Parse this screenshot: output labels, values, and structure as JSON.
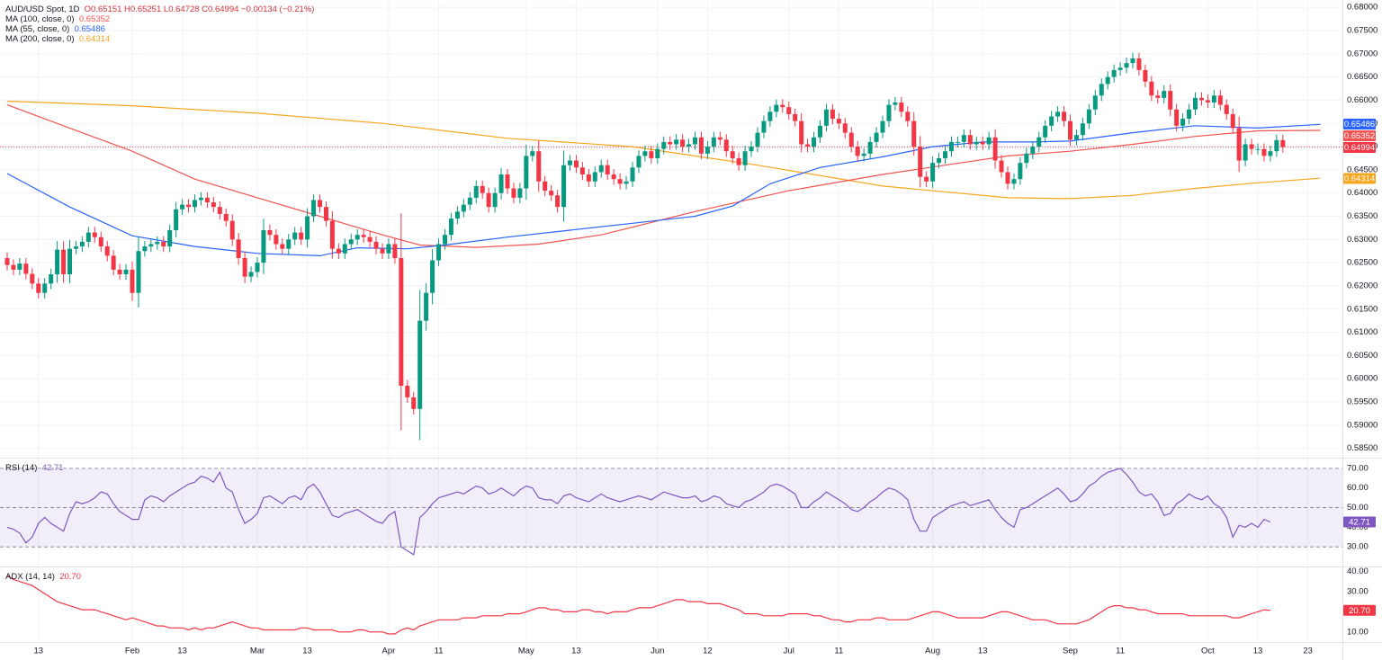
{
  "header": {
    "symbol": "AUD/USD Spot, 1D",
    "o_label": "O",
    "open": "0.65151",
    "h_label": "H",
    "high": "0.65251",
    "l_label": "L",
    "low": "0.64728",
    "c_label": "C",
    "close": "0.64994",
    "change": "−0.00134 (−0.21%)"
  },
  "ma_legend": [
    {
      "label": "MA (100, close, 0)",
      "value": "0.65352",
      "color": "#f05350"
    },
    {
      "label": "MA (55, close, 0)",
      "value": "0.65486",
      "color": "#2962ff"
    },
    {
      "label": "MA (200, close, 0)",
      "value": "0.64314",
      "color": "#f7a51c"
    }
  ],
  "rsi_legend": {
    "label": "RSI (14)",
    "value": "42.71"
  },
  "adx_legend": {
    "label": "ADX (14, 14)",
    "value": "20.70"
  },
  "price_badges": [
    {
      "value": "0.65486",
      "color": "#2962ff"
    },
    {
      "value": "0.65352",
      "color": "#f05350"
    },
    {
      "value": "0.64994",
      "color": "#f23645"
    },
    {
      "value": "0.64314",
      "color": "#f7a51c"
    }
  ],
  "chart_data": {
    "type": "candlestick",
    "title": "AUD/USD Spot, 1D",
    "price_axis": {
      "range": [
        0.583,
        0.681
      ],
      "ticks": [
        "0.68000",
        "0.67500",
        "0.67000",
        "0.66500",
        "0.66000",
        "0.65500",
        "0.65000",
        "0.64500",
        "0.64000",
        "0.63500",
        "0.63000",
        "0.62500",
        "0.62000",
        "0.61500",
        "0.61000",
        "0.60500",
        "0.60000",
        "0.59500",
        "0.59000",
        "0.58500"
      ]
    },
    "x_axis": {
      "labels": [
        {
          "text": "13",
          "bar": 5
        },
        {
          "text": "Feb",
          "bar": 20
        },
        {
          "text": "13",
          "bar": 28
        },
        {
          "text": "Mar",
          "bar": 40
        },
        {
          "text": "13",
          "bar": 48
        },
        {
          "text": "Apr",
          "bar": 61
        },
        {
          "text": "11",
          "bar": 69
        },
        {
          "text": "May",
          "bar": 83
        },
        {
          "text": "13",
          "bar": 91
        },
        {
          "text": "Jun",
          "bar": 104
        },
        {
          "text": "12",
          "bar": 112
        },
        {
          "text": "Jul",
          "bar": 125
        },
        {
          "text": "11",
          "bar": 133
        },
        {
          "text": "Aug",
          "bar": 148
        },
        {
          "text": "13",
          "bar": 156
        },
        {
          "text": "Sep",
          "bar": 170
        },
        {
          "text": "11",
          "bar": 178
        },
        {
          "text": "Oct",
          "bar": 192
        },
        {
          "text": "13",
          "bar": 200
        },
        {
          "text": "23",
          "bar": 208
        }
      ]
    },
    "current_price": 0.64994,
    "closes": [
      0.6245,
      0.6235,
      0.6248,
      0.6226,
      0.6205,
      0.6185,
      0.6205,
      0.6225,
      0.6278,
      0.6225,
      0.628,
      0.6285,
      0.6295,
      0.6315,
      0.6305,
      0.6285,
      0.6265,
      0.6235,
      0.6225,
      0.6235,
      0.6185,
      0.6275,
      0.6285,
      0.629,
      0.6295,
      0.6285,
      0.632,
      0.6365,
      0.6375,
      0.637,
      0.6385,
      0.639,
      0.638,
      0.637,
      0.6355,
      0.634,
      0.63,
      0.626,
      0.622,
      0.623,
      0.625,
      0.632,
      0.631,
      0.629,
      0.628,
      0.63,
      0.6315,
      0.63,
      0.635,
      0.6385,
      0.637,
      0.634,
      0.628,
      0.627,
      0.629,
      0.63,
      0.631,
      0.6305,
      0.6295,
      0.628,
      0.627,
      0.629,
      0.626,
      0.5985,
      0.596,
      0.5935,
      0.6125,
      0.6185,
      0.6255,
      0.629,
      0.631,
      0.6345,
      0.636,
      0.6375,
      0.639,
      0.6415,
      0.64,
      0.637,
      0.64,
      0.644,
      0.641,
      0.639,
      0.641,
      0.648,
      0.649,
      0.6425,
      0.6405,
      0.6395,
      0.637,
      0.646,
      0.647,
      0.6455,
      0.644,
      0.6425,
      0.6445,
      0.646,
      0.644,
      0.643,
      0.642,
      0.6425,
      0.6455,
      0.648,
      0.649,
      0.6475,
      0.6495,
      0.651,
      0.6505,
      0.6515,
      0.65,
      0.6505,
      0.652,
      0.6485,
      0.65,
      0.652,
      0.6515,
      0.649,
      0.6475,
      0.646,
      0.649,
      0.65,
      0.653,
      0.6555,
      0.6575,
      0.659,
      0.6585,
      0.657,
      0.6555,
      0.6505,
      0.65,
      0.652,
      0.6545,
      0.658,
      0.656,
      0.655,
      0.653,
      0.65,
      0.648,
      0.6485,
      0.651,
      0.653,
      0.6555,
      0.659,
      0.6595,
      0.6575,
      0.6555,
      0.65,
      0.6435,
      0.6425,
      0.6465,
      0.6475,
      0.649,
      0.651,
      0.651,
      0.6525,
      0.6505,
      0.651,
      0.6505,
      0.652,
      0.647,
      0.6445,
      0.642,
      0.643,
      0.6465,
      0.6485,
      0.65,
      0.652,
      0.6545,
      0.6565,
      0.6575,
      0.6555,
      0.6515,
      0.6525,
      0.655,
      0.658,
      0.661,
      0.6635,
      0.665,
      0.6665,
      0.667,
      0.668,
      0.669,
      0.6665,
      0.664,
      0.661,
      0.6605,
      0.662,
      0.658,
      0.6545,
      0.656,
      0.658,
      0.6605,
      0.66,
      0.6595,
      0.661,
      0.659,
      0.657,
      0.654,
      0.647,
      0.6505,
      0.6495,
      0.6495,
      0.648,
      0.649,
      0.6514,
      0.6499
    ],
    "moving_averages": [
      {
        "name": "MA (200, close, 0)",
        "color": "#f7a51c",
        "points": [
          [
            0,
            0.6598
          ],
          [
            20,
            0.6588
          ],
          [
            40,
            0.6572
          ],
          [
            60,
            0.655
          ],
          [
            80,
            0.6518
          ],
          [
            100,
            0.65
          ],
          [
            120,
            0.646
          ],
          [
            140,
            0.6415
          ],
          [
            160,
            0.639
          ],
          [
            170,
            0.6388
          ],
          [
            180,
            0.6395
          ],
          [
            190,
            0.641
          ],
          [
            200,
            0.6422
          ],
          [
            210,
            0.6432
          ]
        ]
      },
      {
        "name": "MA (100, close, 0)",
        "color": "#f05350",
        "points": [
          [
            0,
            0.659
          ],
          [
            10,
            0.654
          ],
          [
            20,
            0.649
          ],
          [
            30,
            0.643
          ],
          [
            40,
            0.639
          ],
          [
            50,
            0.635
          ],
          [
            60,
            0.631
          ],
          [
            66,
            0.6288
          ],
          [
            75,
            0.6283
          ],
          [
            85,
            0.629
          ],
          [
            95,
            0.631
          ],
          [
            110,
            0.636
          ],
          [
            125,
            0.6405
          ],
          [
            140,
            0.644
          ],
          [
            150,
            0.646
          ],
          [
            160,
            0.648
          ],
          [
            170,
            0.649
          ],
          [
            180,
            0.6505
          ],
          [
            190,
            0.6522
          ],
          [
            200,
            0.6534
          ],
          [
            210,
            0.6535
          ]
        ]
      },
      {
        "name": "MA (55, close, 0)",
        "color": "#2962ff",
        "points": [
          [
            0,
            0.6442
          ],
          [
            10,
            0.637
          ],
          [
            20,
            0.6308
          ],
          [
            30,
            0.6285
          ],
          [
            40,
            0.627
          ],
          [
            50,
            0.6265
          ],
          [
            56,
            0.6282
          ],
          [
            64,
            0.628
          ],
          [
            70,
            0.6288
          ],
          [
            80,
            0.6305
          ],
          [
            90,
            0.632
          ],
          [
            100,
            0.6335
          ],
          [
            110,
            0.635
          ],
          [
            116,
            0.6372
          ],
          [
            122,
            0.642
          ],
          [
            130,
            0.6455
          ],
          [
            140,
            0.6478
          ],
          [
            148,
            0.65
          ],
          [
            156,
            0.651
          ],
          [
            164,
            0.651
          ],
          [
            170,
            0.6512
          ],
          [
            180,
            0.653
          ],
          [
            190,
            0.6545
          ],
          [
            200,
            0.654
          ],
          [
            210,
            0.6548
          ]
        ]
      }
    ],
    "rsi": {
      "name": "RSI (14)",
      "range": [
        20,
        75
      ],
      "ticks": [
        "70.00",
        "60.00",
        "50.00",
        "40.00",
        "30.00"
      ],
      "bands": [
        30,
        50,
        70
      ],
      "current": 42.71,
      "values": [
        40,
        39,
        37,
        32,
        35,
        42,
        45,
        42,
        40,
        38,
        47,
        53,
        52,
        53,
        55,
        58,
        57,
        52,
        48,
        46,
        44,
        44,
        54,
        56,
        55,
        53,
        56,
        58,
        60,
        62,
        63,
        66,
        65,
        63,
        68,
        60,
        58,
        49,
        42,
        44,
        47,
        55,
        56,
        54,
        52,
        55,
        56,
        54,
        60,
        62,
        58,
        52,
        46,
        45,
        47,
        48,
        49,
        47,
        45,
        43,
        42,
        46,
        48,
        30,
        28,
        26,
        45,
        48,
        52,
        55,
        56,
        57,
        58,
        57,
        59,
        61,
        60,
        57,
        58,
        60,
        58,
        56,
        59,
        61,
        60,
        55,
        54,
        54,
        52,
        56,
        57,
        55,
        54,
        53,
        55,
        57,
        55,
        54,
        53,
        54,
        55,
        56,
        55,
        54,
        56,
        58,
        57,
        56,
        55,
        55,
        56,
        53,
        54,
        56,
        55,
        52,
        51,
        50,
        53,
        54,
        56,
        58,
        61,
        62,
        61,
        59,
        57,
        50,
        50,
        53,
        55,
        58,
        56,
        54,
        52,
        49,
        48,
        50,
        53,
        55,
        58,
        60,
        59,
        57,
        54,
        44,
        38,
        38,
        45,
        47,
        49,
        51,
        52,
        53,
        51,
        52,
        53,
        54,
        49,
        45,
        42,
        40,
        49,
        50,
        52,
        54,
        56,
        58,
        60,
        57,
        53,
        54,
        57,
        61,
        63,
        66,
        68,
        69,
        70,
        67,
        63,
        58,
        56,
        57,
        53,
        46,
        47,
        52,
        54,
        57,
        55,
        54,
        56,
        52,
        50,
        45,
        35,
        41,
        40,
        42,
        40,
        44,
        42.71
      ]
    },
    "adx": {
      "name": "ADX (14, 14)",
      "range": [
        5,
        42
      ],
      "ticks": [
        "40.00",
        "30.00",
        "20.00",
        "10.00"
      ],
      "current": 20.7,
      "values": [
        38,
        36,
        35,
        34,
        33,
        31,
        29,
        27,
        25,
        24,
        23,
        22,
        21,
        21,
        21,
        20,
        19,
        18,
        17,
        16,
        17,
        16,
        15,
        14,
        13,
        13,
        12,
        12,
        12,
        11,
        12,
        11,
        12,
        12,
        13,
        14,
        15,
        14,
        13,
        12,
        12,
        11,
        11,
        11,
        11,
        11,
        11,
        12,
        12,
        11,
        11,
        11,
        11,
        10,
        10,
        10,
        11,
        11,
        10,
        10,
        10,
        9,
        9,
        11,
        12,
        11,
        13,
        14,
        15,
        16,
        16,
        16,
        16,
        17,
        17,
        17,
        18,
        18,
        18,
        18,
        19,
        19,
        19,
        20,
        21,
        22,
        22,
        21,
        21,
        20,
        20,
        20,
        21,
        21,
        20,
        20,
        19,
        20,
        20,
        20,
        21,
        22,
        22,
        22,
        23,
        24,
        25,
        26,
        26,
        25,
        25,
        25,
        24,
        24,
        24,
        23,
        22,
        21,
        19,
        19,
        19,
        18,
        18,
        18,
        18,
        19,
        19,
        19,
        19,
        18,
        18,
        17,
        16,
        16,
        15,
        15,
        16,
        16,
        16,
        17,
        17,
        16,
        16,
        16,
        16,
        17,
        18,
        19,
        20,
        20,
        19,
        18,
        17,
        17,
        17,
        17,
        17,
        18,
        19,
        20,
        20,
        19,
        18,
        17,
        16,
        16,
        16,
        15,
        14,
        14,
        14,
        14,
        15,
        16,
        18,
        20,
        22,
        23,
        23,
        22,
        22,
        21,
        21,
        20,
        19,
        19,
        19,
        19,
        19,
        18,
        18,
        18,
        18,
        18,
        18,
        18,
        17,
        17,
        18,
        19,
        20,
        21,
        20.7
      ]
    }
  }
}
